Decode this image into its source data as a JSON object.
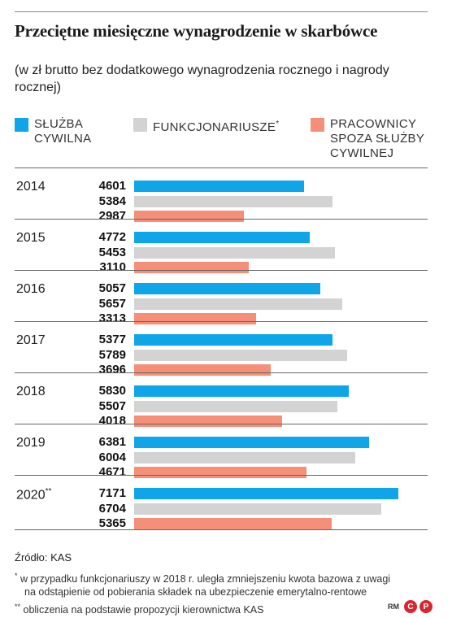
{
  "title": "Przeciętne miesięczne wynagrodzenie w skarbówce",
  "subtitle": "(w zł brutto bez dodatkowego wynagrodzenia rocznego i nagrody rocznej)",
  "colors": {
    "sluzba": "#0ea5e9",
    "funkcjonariusze": "#d3d3d3",
    "pracownicy": "#f58f78",
    "rule": "#666666"
  },
  "legend": {
    "sluzba": "SŁUŻBA\nCYWILNA",
    "funkcjonariusze": "FUNKCJONARIUSZE",
    "funkcjonariusze_mark": "*",
    "pracownicy": "PRACOWNICY\nSPOZA SŁUŻBY\nCYWILNEJ"
  },
  "chart_data": {
    "type": "bar",
    "orientation": "horizontal",
    "title": "Przeciętne miesięczne wynagrodzenie w skarbówce",
    "subtitle": "(w zł brutto bez dodatkowego wynagrodzenia rocznego i nagrody rocznej)",
    "categories": [
      "2014",
      "2015",
      "2016",
      "2017",
      "2018",
      "2019",
      "2020"
    ],
    "category_marks": [
      "",
      "",
      "",
      "",
      "",
      "",
      "**"
    ],
    "series": [
      {
        "name": "SŁUŻBA CYWILNA",
        "key": "sluzba",
        "values": [
          4601,
          4772,
          5057,
          5377,
          5830,
          6381,
          7171
        ]
      },
      {
        "name": "FUNKCJONARIUSZE",
        "key": "funkcjonariusze",
        "values": [
          5384,
          5453,
          5657,
          5789,
          5507,
          6004,
          6704
        ]
      },
      {
        "name": "PRACOWNICY SPOZA SŁUŻBY CYWILNEJ",
        "key": "pracownicy",
        "values": [
          2987,
          3110,
          3313,
          3696,
          4018,
          4671,
          5365
        ]
      }
    ],
    "xlim": [
      0,
      7171
    ],
    "grid": false,
    "legend_position": "top"
  },
  "source": "Źródło: KAS",
  "notes": {
    "note1_mark": "*",
    "note1_line1": " w przypadku funkcjonariuszy w 2018 r. uległa zmniejszeniu kwota bazowa z uwagi",
    "note1_line2": "na odstąpienie od pobierania składek na ubezpieczenie emerytalno-rentowe",
    "note2_mark": "**",
    "note2": " obliczenia na podstawie propozycji kierownictwa KAS"
  },
  "logo": {
    "text": "RM",
    "c": "C",
    "p": "P"
  }
}
